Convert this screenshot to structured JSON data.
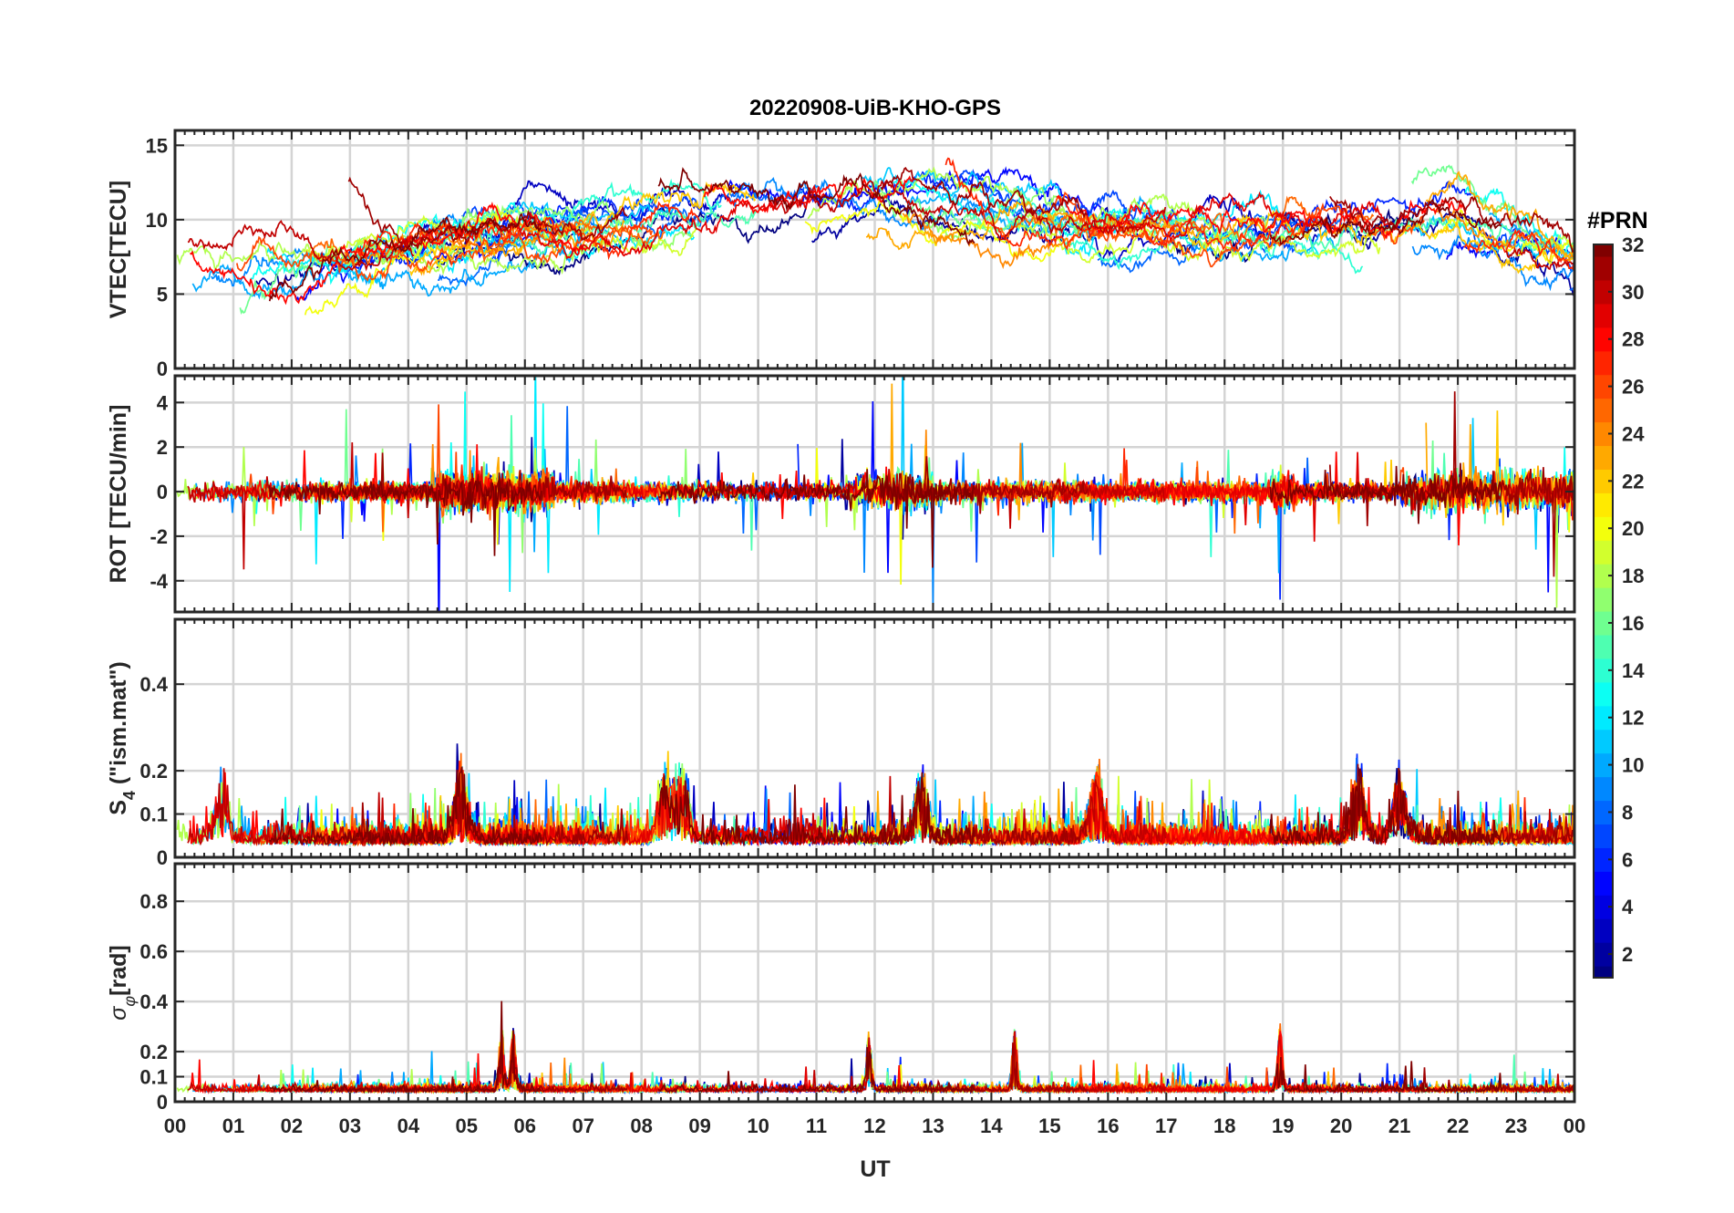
{
  "chart_data": {
    "type": "line",
    "title": "20220908-UiB-KHO-GPS",
    "xlabel": "UT",
    "x_ticks": [
      "00",
      "01",
      "02",
      "03",
      "04",
      "05",
      "06",
      "07",
      "08",
      "09",
      "10",
      "11",
      "12",
      "13",
      "14",
      "15",
      "16",
      "17",
      "18",
      "19",
      "20",
      "21",
      "22",
      "23",
      "00"
    ],
    "xlim_hours": [
      0,
      24
    ],
    "grid": true,
    "colorbar": {
      "label": "#PRN",
      "range": [
        1,
        32
      ],
      "ticks": [
        "2",
        "4",
        "6",
        "8",
        "10",
        "12",
        "14",
        "16",
        "18",
        "20",
        "22",
        "24",
        "26",
        "28",
        "30",
        "32"
      ],
      "colormap": "jet",
      "placement": "right"
    },
    "panels": [
      {
        "name": "vtec",
        "ylabel": "VTEC[TECU]",
        "ylim": [
          0,
          16
        ],
        "y_ticks": [
          "0",
          "5",
          "10",
          "15"
        ],
        "approx_profile_hours": [
          0,
          2,
          4,
          6,
          8,
          10,
          12,
          14,
          16,
          18,
          20,
          22,
          24
        ],
        "approx_profile_values": [
          6.5,
          6.5,
          8.0,
          9.0,
          9.5,
          11.0,
          11.5,
          10.5,
          9.5,
          9.5,
          9.5,
          10.0,
          7.0
        ]
      },
      {
        "name": "rot",
        "ylabel": "ROT [TECU/min]",
        "ylim": [
          -5.4,
          5.2
        ],
        "y_ticks": [
          "-4",
          "-2",
          "0",
          "2",
          "4"
        ]
      },
      {
        "name": "s4",
        "ylabel": "S4 (\"ism.mat\")",
        "ylabel_main": "S",
        "ylabel_sub": "4",
        "ylabel_rest": " (\"ism.mat\")",
        "ylim": [
          0,
          0.55
        ],
        "y_ticks": [
          "0",
          "0.1",
          "0.2",
          "0.4"
        ],
        "typical_level": 0.03,
        "notable_peaks_hours": [
          0.8,
          4.9,
          8.4,
          8.7,
          12.8,
          15.8,
          20.3,
          21.0
        ]
      },
      {
        "name": "sigma_phi",
        "ylabel": "σφ[rad]",
        "ylabel_main": "σ",
        "ylabel_sub": "φ",
        "ylabel_rest": "[rad]",
        "ylim": [
          0,
          0.95
        ],
        "y_ticks": [
          "0",
          "0.1",
          "0.2",
          "0.4",
          "0.6",
          "0.8"
        ],
        "typical_level": 0.04,
        "notable_peaks_hours": [
          5.6,
          5.8,
          11.9,
          14.4,
          18.95
        ]
      }
    ]
  }
}
